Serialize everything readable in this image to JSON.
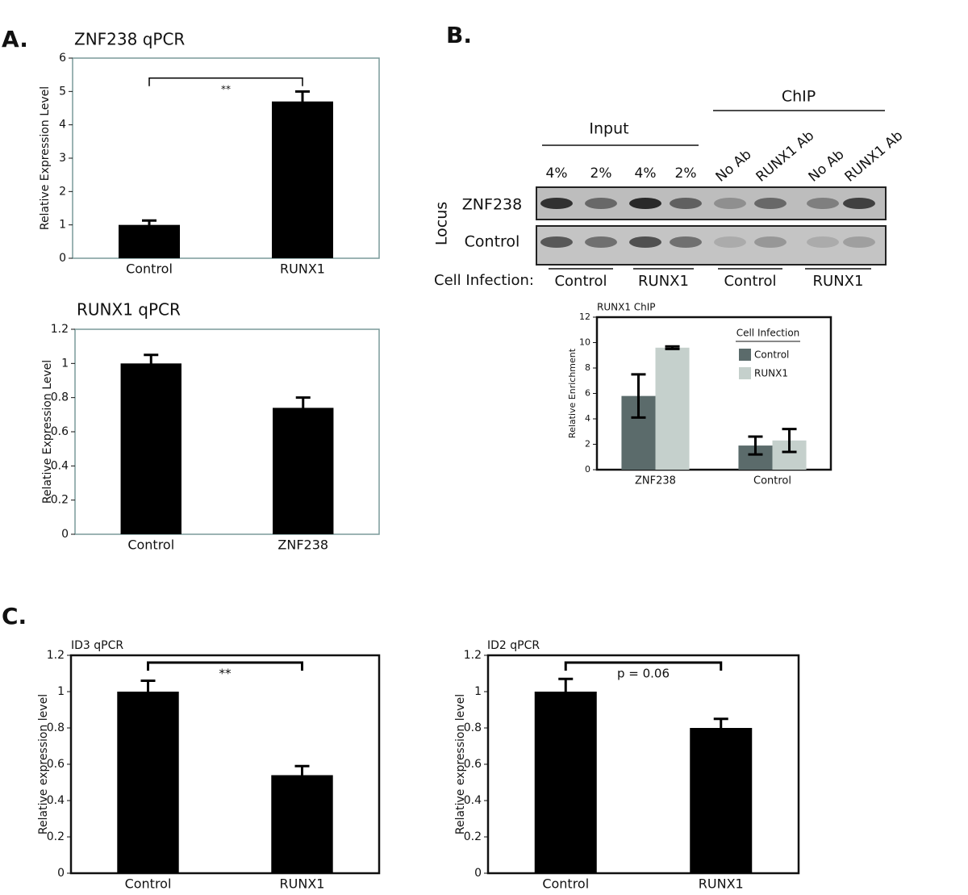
{
  "panels": [
    "A.",
    "B.",
    "C."
  ],
  "chart_data": [
    {
      "type": "bar",
      "title": "ZNF238 qPCR",
      "y_label": "Relative Expression Level",
      "annotation": "**",
      "categories": [
        "Control",
        "RUNX1"
      ],
      "values": [
        1,
        4.7
      ],
      "errors": [
        0.13,
        0.3
      ],
      "color": "#000000",
      "ylim": [
        0,
        6
      ],
      "yticks": [
        0,
        1,
        2,
        3,
        4,
        5,
        6
      ]
    },
    {
      "type": "bar",
      "title": "RUNX1 qPCR",
      "y_label": "Relative Expression Level",
      "categories": [
        "Control",
        "ZNF238"
      ],
      "values": [
        1,
        0.74
      ],
      "errors": [
        0.05,
        0.06
      ],
      "color": "#000000",
      "ylim": [
        0,
        1.2
      ],
      "yticks": [
        0,
        0.2,
        0.4,
        0.6,
        0.8,
        1,
        1.2
      ]
    },
    {
      "type": "bar",
      "title": "RUNX1 ChIP",
      "y_label": "Relative Enrichment",
      "legend_title": "Cell Infection",
      "categories": [
        "ZNF238",
        "Control"
      ],
      "series": [
        {
          "name": "Control",
          "color": "#5b6b6b",
          "values": [
            5.8,
            1.9
          ],
          "errors": [
            1.7,
            0.7
          ]
        },
        {
          "name": "RUNX1",
          "color": "#c5d0cc",
          "values": [
            9.6,
            2.3
          ],
          "errors": [
            0.1,
            0.9
          ]
        }
      ],
      "ylim": [
        0,
        12
      ],
      "yticks": [
        0,
        2,
        4,
        6,
        8,
        10,
        12
      ]
    },
    {
      "type": "bar",
      "title": "ID3 qPCR",
      "y_label": "Relative expression level",
      "annotation": "**",
      "categories": [
        "Control",
        "RUNX1"
      ],
      "values": [
        1,
        0.54
      ],
      "errors": [
        0.06,
        0.05
      ],
      "color": "#000000",
      "ylim": [
        0,
        1.2
      ],
      "yticks": [
        0,
        0.2,
        0.4,
        0.6,
        0.8,
        1,
        1.2
      ]
    },
    {
      "type": "bar",
      "title": "ID2 qPCR",
      "y_label": "Relative expression level",
      "annotation": "p = 0.06",
      "categories": [
        "Control",
        "RUNX1"
      ],
      "values": [
        1,
        0.8
      ],
      "errors": [
        0.07,
        0.05
      ],
      "color": "#000000",
      "ylim": [
        0,
        1.2
      ],
      "yticks": [
        0,
        0.2,
        0.4,
        0.6,
        0.8,
        1,
        1.2
      ]
    }
  ],
  "gel": {
    "groups": [
      "Input",
      "ChIP"
    ],
    "lanes": [
      "4%",
      "2%",
      "4%",
      "2%",
      "No Ab",
      "RUNX1 Ab",
      "No Ab",
      "RUNX1 Ab"
    ],
    "rows": [
      "ZNF238",
      "Control"
    ],
    "row_axis": "Locus",
    "infection_label": "Cell Infection:",
    "infections": [
      "Control",
      "RUNX1",
      "Control",
      "RUNX1"
    ]
  }
}
